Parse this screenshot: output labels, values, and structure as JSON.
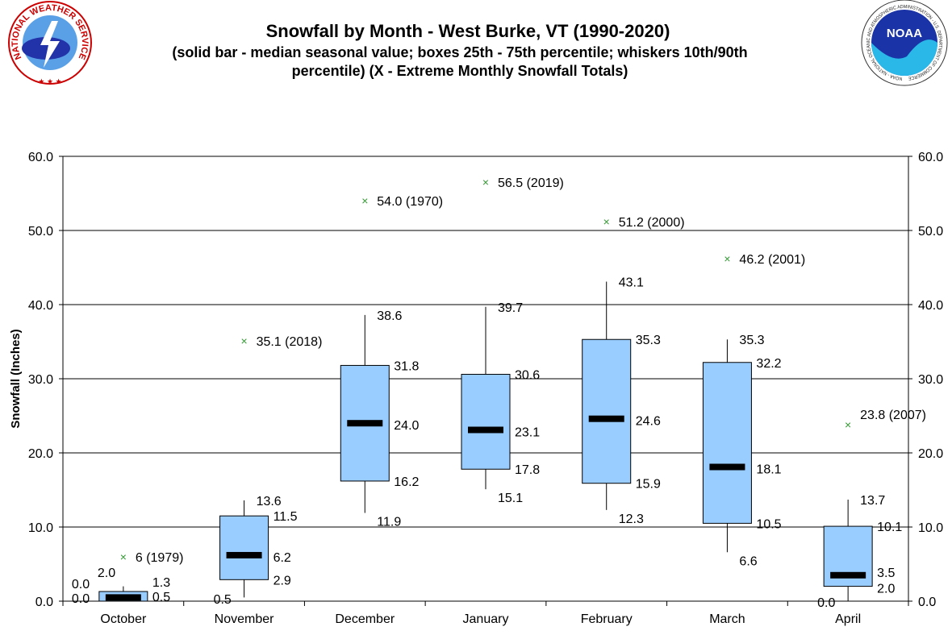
{
  "header": {
    "title": "Snowfall by Month - West Burke, VT (1990-2020)",
    "subtitle_line1": "(solid bar - median seasonal value; boxes 25th - 75th percentile; whiskers 10th/90th",
    "subtitle_line2": "percentile) (X - Extreme Monthly Snowfall Totals)",
    "left_logo_text": "NATIONAL WEATHER SERVICE",
    "right_logo_text": "NOAA - NATIONAL OCEANIC AND ATMOSPHERIC ADMINISTRATION - U.S. DEPARTMENT OF COMMERCE"
  },
  "chart_data": {
    "type": "boxplot",
    "ylabel": "Snowfall (Inches)",
    "ylim": [
      0,
      60
    ],
    "yticks": [
      "0.0",
      "10.0",
      "20.0",
      "30.0",
      "40.0",
      "50.0",
      "60.0"
    ],
    "grid": true,
    "colors": {
      "box": "#99ccff",
      "median": "#000000",
      "extreme": "#339933"
    },
    "categories": [
      "October",
      "November",
      "December",
      "January",
      "February",
      "March",
      "April"
    ],
    "p10": [
      "0.0",
      "0.5",
      "11.9",
      "15.1",
      "12.3",
      "6.6",
      "0.0"
    ],
    "p25": [
      "0.0",
      "2.9",
      "16.2",
      "17.8",
      "15.9",
      "10.5",
      "2.0"
    ],
    "median": [
      "0.5",
      "6.2",
      "24.0",
      "23.1",
      "24.6",
      "18.1",
      "3.5"
    ],
    "p75": [
      "1.3",
      "11.5",
      "31.8",
      "30.6",
      "35.3",
      "32.2",
      "10.1"
    ],
    "p90": [
      "2.0",
      "13.6",
      "38.6",
      "39.7",
      "43.1",
      "35.3",
      "13.7"
    ],
    "extreme_values": [
      6,
      35.1,
      54.0,
      56.5,
      51.2,
      46.2,
      23.8
    ],
    "extreme_labels": [
      "6 (1979)",
      "35.1 (2018)",
      "54.0 (1970)",
      "56.5 (2019)",
      "51.2 (2000)",
      "46.2 (2001)",
      "23.8 (2007)"
    ]
  }
}
